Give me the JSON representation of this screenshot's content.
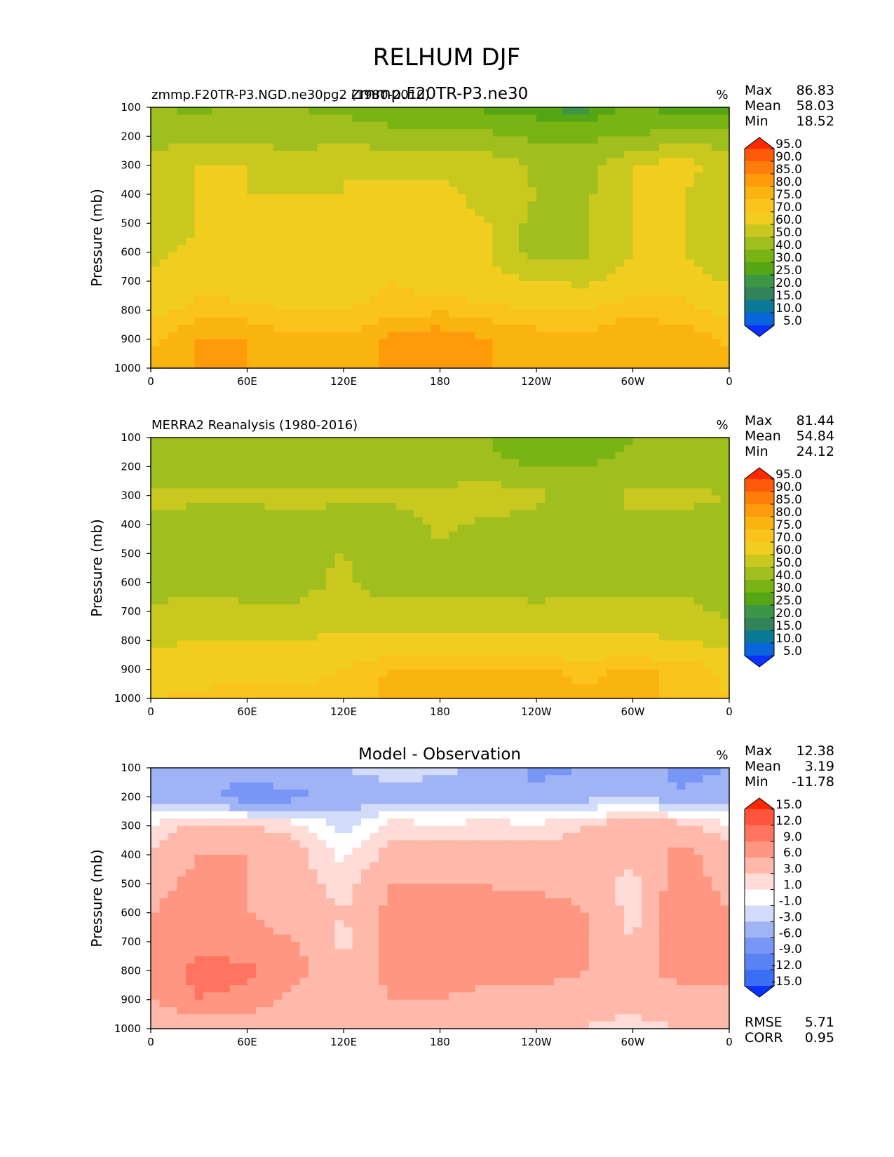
{
  "figure_title": "RELHUM DJF",
  "panels": [
    {
      "id": "model",
      "left_title": "zmmp.F20TR-P3.NGD.ne30pg2 (1980-2010)",
      "center_title": "zmmp.F20TR-P3.ne30",
      "units": "%",
      "stats": {
        "max_label": "Max",
        "max": "86.83",
        "mean_label": "Mean",
        "mean": "58.03",
        "min_label": "Min",
        "min": "18.52"
      }
    },
    {
      "id": "obs",
      "left_title": "MERRA2 Reanalysis (1980-2016)",
      "center_title": "",
      "units": "%",
      "stats": {
        "max_label": "Max",
        "max": "81.44",
        "mean_label": "Mean",
        "mean": "54.84",
        "min_label": "Min",
        "min": "24.12"
      }
    },
    {
      "id": "diff",
      "left_title": "",
      "center_title": "Model - Observation",
      "units": "%",
      "stats": {
        "max_label": "Max",
        "max": "12.38",
        "mean_label": "Mean",
        "mean": "3.19",
        "min_label": "Min",
        "min": "-11.78"
      },
      "rmse_label": "RMSE",
      "rmse": "5.71",
      "corr_label": "CORR",
      "corr": "0.95"
    }
  ],
  "colorbars": {
    "field": {
      "labels": [
        "5.0",
        "10.0",
        "15.0",
        "20.0",
        "25.0",
        "30.0",
        "40.0",
        "50.0",
        "60.0",
        "70.0",
        "75.0",
        "80.0",
        "85.0",
        "90.0",
        "95.0"
      ],
      "colors": [
        "#0a32ff",
        "#0a64dc",
        "#0a7896",
        "#32825a",
        "#3c9646",
        "#55a514",
        "#78b414",
        "#a0be1e",
        "#c8c81e",
        "#f0cd1e",
        "#fac31e",
        "#fab40f",
        "#ff9b0a",
        "#ff7d0a",
        "#ff5a0a",
        "#ff2800"
      ]
    },
    "diff": {
      "labels": [
        "-15.0",
        "-12.0",
        "-9.0",
        "-6.0",
        "-3.0",
        "-1.0",
        "1.0",
        "3.0",
        "6.0",
        "9.0",
        "12.0",
        "15.0"
      ],
      "colors": [
        "#0a32ff",
        "#3c6ef5",
        "#5a82f5",
        "#7896f5",
        "#a0b4f5",
        "#d2dcfa",
        "#ffffff",
        "#ffdcd7",
        "#ffb9aa",
        "#ff9682",
        "#ff735f",
        "#ff553c",
        "#ff2800"
      ]
    }
  },
  "chart_data": [
    {
      "type": "heatmap",
      "title": "zmmp.F20TR-P3.ne30",
      "subtitle": "zmmp.F20TR-P3.NGD.ne30pg2 (1980-2010)",
      "xlabel": "",
      "ylabel": "Pressure (mb)",
      "x_ticks": [
        "0",
        "60E",
        "120E",
        "180",
        "120W",
        "60W",
        "0"
      ],
      "y_ticks": [
        "100",
        "200",
        "300",
        "400",
        "500",
        "600",
        "700",
        "800",
        "900",
        "1000"
      ],
      "xlim": [
        0,
        360
      ],
      "ylim": [
        1000,
        100
      ],
      "x": [
        0,
        30,
        60,
        90,
        120,
        150,
        180,
        210,
        240,
        270,
        300,
        330,
        360
      ],
      "y": [
        100,
        200,
        300,
        400,
        500,
        600,
        700,
        800,
        900,
        1000
      ],
      "z": [
        [
          40,
          38,
          42,
          40,
          38,
          32,
          30,
          28,
          25,
          22,
          32,
          25,
          28
        ],
        [
          48,
          46,
          46,
          44,
          45,
          44,
          45,
          42,
          38,
          38,
          40,
          44,
          45
        ],
        [
          52,
          60,
          60,
          58,
          60,
          58,
          58,
          56,
          48,
          46,
          60,
          65,
          55
        ],
        [
          55,
          60,
          60,
          60,
          60,
          62,
          62,
          58,
          50,
          48,
          60,
          60,
          52
        ],
        [
          55,
          60,
          60,
          60,
          60,
          62,
          62,
          60,
          46,
          48,
          60,
          60,
          50
        ],
        [
          58,
          62,
          62,
          60,
          62,
          68,
          62,
          60,
          45,
          48,
          60,
          60,
          50
        ],
        [
          62,
          68,
          66,
          64,
          66,
          70,
          66,
          64,
          60,
          58,
          66,
          68,
          58
        ],
        [
          68,
          72,
          72,
          70,
          70,
          72,
          74,
          72,
          70,
          70,
          74,
          72,
          68
        ],
        [
          74,
          80,
          80,
          76,
          76,
          82,
          84,
          80,
          78,
          76,
          80,
          78,
          74
        ],
        [
          76,
          80,
          80,
          78,
          80,
          80,
          82,
          80,
          80,
          78,
          80,
          78,
          76
        ]
      ],
      "units": "%"
    },
    {
      "type": "heatmap",
      "title": "",
      "subtitle": "MERRA2 Reanalysis (1980-2016)",
      "xlabel": "",
      "ylabel": "Pressure (mb)",
      "x_ticks": [
        "0",
        "60E",
        "120E",
        "180",
        "120W",
        "60W",
        "0"
      ],
      "y_ticks": [
        "100",
        "200",
        "300",
        "400",
        "500",
        "600",
        "700",
        "800",
        "900",
        "1000"
      ],
      "xlim": [
        0,
        360
      ],
      "ylim": [
        1000,
        100
      ],
      "x": [
        0,
        30,
        60,
        90,
        120,
        150,
        180,
        210,
        240,
        270,
        300,
        330,
        360
      ],
      "y": [
        100,
        200,
        300,
        400,
        500,
        600,
        700,
        800,
        900,
        1000
      ],
      "z": [
        [
          42,
          42,
          42,
          42,
          40,
          40,
          42,
          40,
          34,
          34,
          40,
          40,
          40
        ],
        [
          44,
          44,
          44,
          44,
          44,
          44,
          42,
          42,
          40,
          40,
          42,
          44,
          44
        ],
        [
          52,
          52,
          52,
          52,
          52,
          52,
          54,
          56,
          52,
          46,
          52,
          52,
          50
        ],
        [
          48,
          46,
          46,
          48,
          46,
          46,
          52,
          48,
          46,
          46,
          48,
          48,
          46
        ],
        [
          46,
          44,
          44,
          48,
          50,
          44,
          48,
          46,
          40,
          44,
          46,
          44,
          44
        ],
        [
          48,
          46,
          46,
          46,
          52,
          44,
          44,
          46,
          46,
          46,
          46,
          46,
          44
        ],
        [
          50,
          54,
          52,
          52,
          56,
          54,
          54,
          54,
          52,
          54,
          54,
          54,
          48
        ],
        [
          58,
          60,
          60,
          60,
          62,
          62,
          62,
          62,
          62,
          62,
          62,
          60,
          56
        ],
        [
          64,
          66,
          68,
          68,
          70,
          76,
          76,
          76,
          76,
          74,
          76,
          74,
          68
        ],
        [
          70,
          72,
          72,
          72,
          72,
          76,
          76,
          76,
          76,
          76,
          76,
          74,
          70
        ]
      ],
      "units": "%"
    },
    {
      "type": "heatmap",
      "title": "Model - Observation",
      "subtitle": "",
      "xlabel": "",
      "ylabel": "Pressure (mb)",
      "x_ticks": [
        "0",
        "60E",
        "120E",
        "180",
        "120W",
        "60W",
        "0"
      ],
      "y_ticks": [
        "100",
        "200",
        "300",
        "400",
        "500",
        "600",
        "700",
        "800",
        "900",
        "1000"
      ],
      "xlim": [
        0,
        360
      ],
      "ylim": [
        1000,
        100
      ],
      "x": [
        0,
        30,
        60,
        90,
        120,
        150,
        180,
        210,
        240,
        270,
        300,
        330,
        360
      ],
      "y": [
        100,
        200,
        300,
        400,
        500,
        600,
        700,
        800,
        900,
        1000
      ],
      "z": [
        [
          -4,
          -6,
          -4,
          -3,
          -3,
          -2,
          -2,
          -4,
          -7,
          -6,
          -3,
          -8,
          -6
        ],
        [
          -4,
          -5,
          -8,
          -7,
          -5,
          -4,
          -5,
          -4,
          -5,
          -4,
          -3,
          -5,
          -4
        ],
        [
          1.5,
          4,
          3,
          2,
          -2,
          2,
          1.5,
          2,
          1.5,
          3,
          5,
          4,
          1.5
        ],
        [
          3,
          6,
          6,
          4,
          0.5,
          4,
          4,
          4,
          4,
          4,
          4,
          7,
          4
        ],
        [
          5,
          7,
          6,
          4,
          2,
          6,
          6,
          6,
          5,
          5,
          2,
          8,
          5
        ],
        [
          6,
          7,
          6,
          5,
          3,
          7,
          7,
          6,
          8,
          6,
          2,
          9,
          6
        ],
        [
          6,
          8,
          7,
          6,
          2,
          7,
          9,
          6,
          9,
          6,
          3,
          8,
          6
        ],
        [
          7,
          10,
          10,
          7,
          4,
          7,
          8,
          7,
          8,
          6,
          5,
          7,
          7
        ],
        [
          6,
          9,
          8,
          5,
          4,
          6,
          6,
          5,
          4,
          4,
          4,
          5,
          5
        ],
        [
          3,
          4,
          4,
          3,
          3,
          3,
          3,
          3,
          3,
          3,
          2,
          3,
          3
        ]
      ],
      "units": "%"
    }
  ]
}
